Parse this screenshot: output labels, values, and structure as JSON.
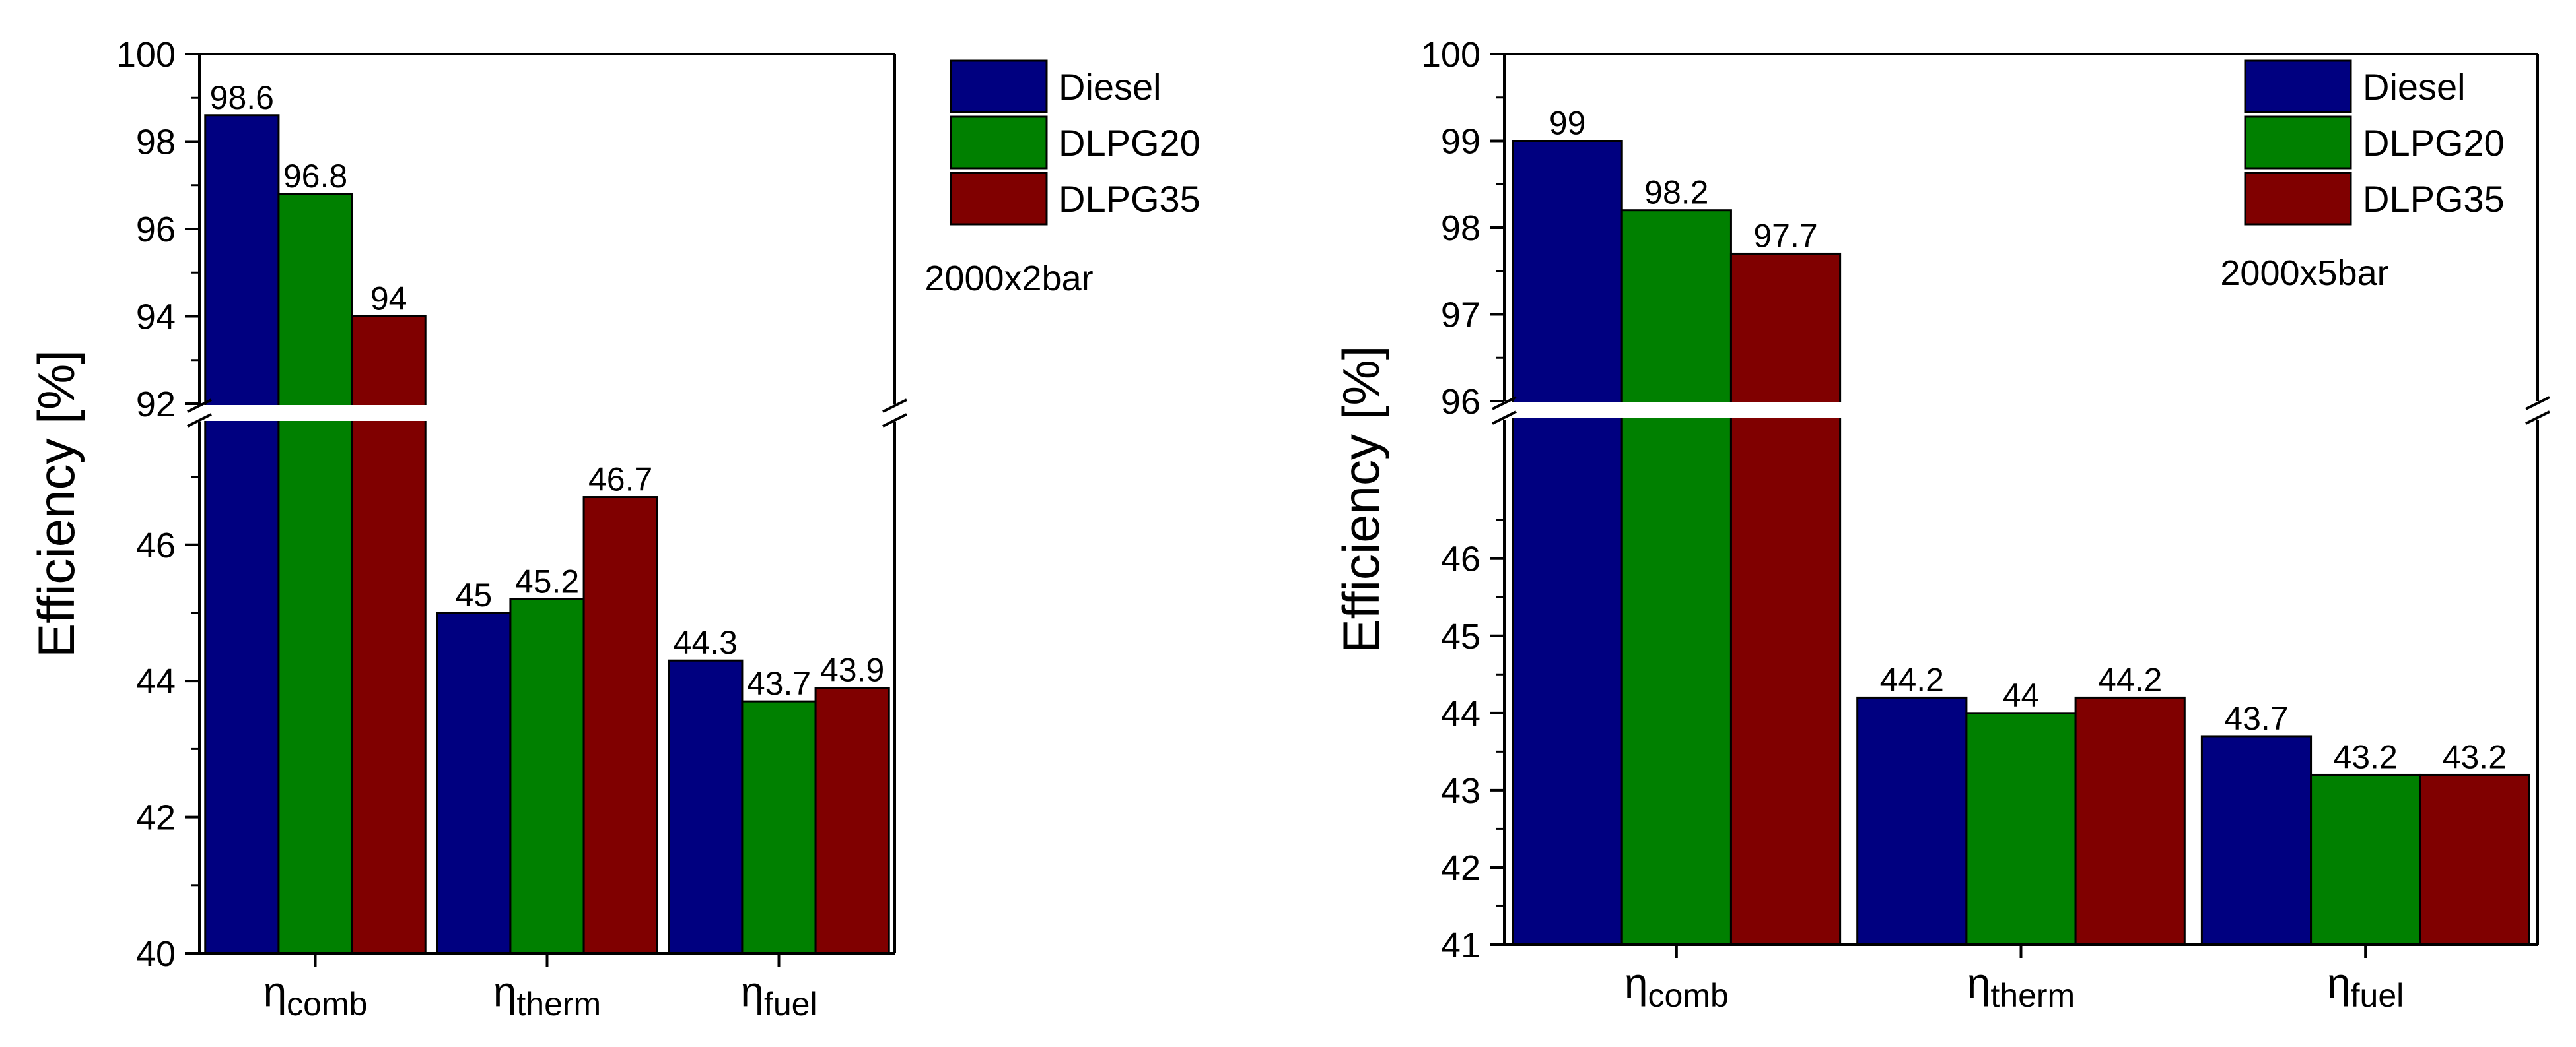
{
  "chart_data": [
    {
      "type": "bar",
      "title": "",
      "annotation": "2000x2bar",
      "ylabel": "Efficiency [%]",
      "xlabel": "",
      "categories": [
        {
          "symbol": "η",
          "subscript": "comb"
        },
        {
          "symbol": "η",
          "subscript": "therm"
        },
        {
          "symbol": "η",
          "subscript": "fuel"
        }
      ],
      "series": [
        {
          "name": "Diesel",
          "color": "#000080",
          "values": [
            98.6,
            45,
            44.3
          ]
        },
        {
          "name": "DLPG20",
          "color": "#008000",
          "values": [
            96.8,
            45.2,
            43.7
          ]
        },
        {
          "name": "DLPG35",
          "color": "#800000",
          "values": [
            94,
            46.7,
            43.9
          ]
        }
      ],
      "y_segments": {
        "lower": {
          "min": 40,
          "max": 47.8,
          "ticks": [
            40,
            42,
            44,
            46
          ],
          "tick_labels": [
            "40",
            "42",
            "44",
            "46"
          ]
        },
        "upper": {
          "min": 92,
          "max": 100,
          "ticks": [
            92,
            94,
            96,
            98,
            100
          ],
          "tick_labels": [
            "92",
            "94",
            "96",
            "98",
            "100"
          ]
        }
      },
      "axis_break": true,
      "legend_position": "top-right"
    },
    {
      "type": "bar",
      "title": "",
      "annotation": "2000x5bar",
      "ylabel": "Efficiency [%]",
      "xlabel": "",
      "categories": [
        {
          "symbol": "η",
          "subscript": "comb"
        },
        {
          "symbol": "η",
          "subscript": "therm"
        },
        {
          "symbol": "η",
          "subscript": "fuel"
        }
      ],
      "series": [
        {
          "name": "Diesel",
          "color": "#000080",
          "values": [
            99,
            44.2,
            43.7
          ]
        },
        {
          "name": "DLPG20",
          "color": "#008000",
          "values": [
            98.2,
            44,
            43.2
          ]
        },
        {
          "name": "DLPG35",
          "color": "#800000",
          "values": [
            97.7,
            44.2,
            43.2
          ]
        }
      ],
      "y_segments": {
        "lower": {
          "min": 41,
          "max": 47.8,
          "ticks": [
            41,
            42,
            43,
            44,
            45,
            46
          ],
          "tick_labels": [
            "41",
            "42",
            "43",
            "44",
            "45",
            "46"
          ]
        },
        "upper": {
          "min": 96,
          "max": 100,
          "ticks": [
            96,
            97,
            98,
            99,
            100
          ],
          "tick_labels": [
            "96",
            "97",
            "98",
            "99",
            "100"
          ]
        }
      },
      "axis_break": true,
      "legend_position": "top-right"
    }
  ]
}
